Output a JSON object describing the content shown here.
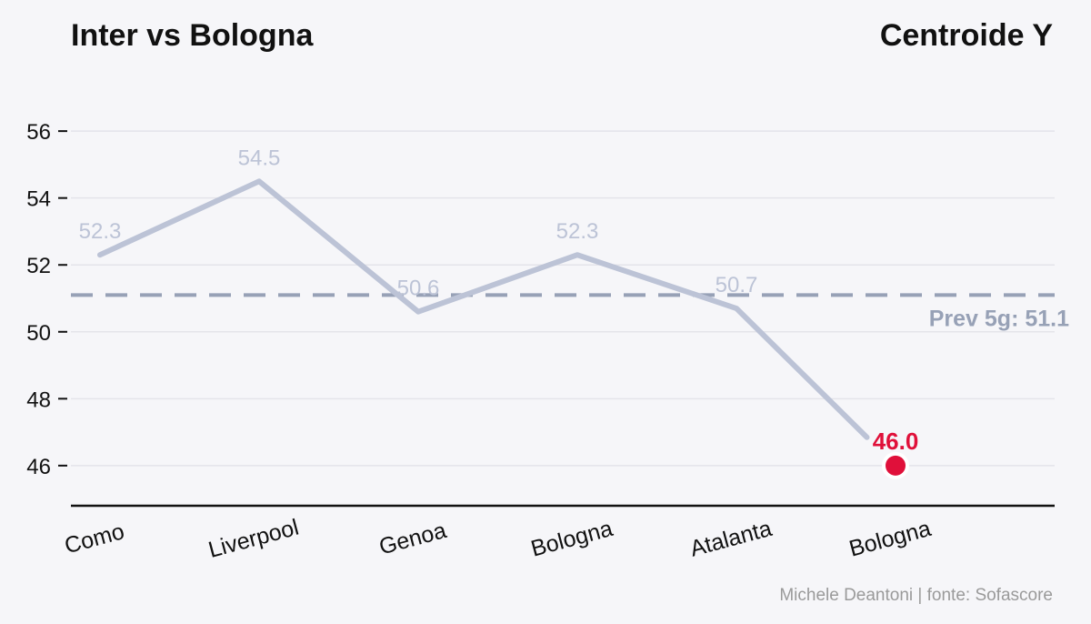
{
  "title_left": "Inter vs Bologna",
  "title_right": "Centroide Y",
  "credit": "Michele Deantoni | fonte: Sofascore",
  "colors": {
    "line": "#bcc3d6",
    "reference": "#97a1b6",
    "highlight": "#e0103a",
    "background": "#f6f6f9"
  },
  "chart_data": {
    "type": "line",
    "title": "Centroide Y",
    "categories": [
      "Como",
      "Liverpool",
      "Genoa",
      "Bologna",
      "Atalanta",
      "Bologna"
    ],
    "values": [
      52.3,
      54.5,
      50.6,
      52.3,
      50.7,
      46.0
    ],
    "value_labels": [
      "52.3",
      "54.5",
      "50.6",
      "52.3",
      "50.7",
      "46.0"
    ],
    "ylim": [
      44.8,
      57.2
    ],
    "yticks": [
      46,
      48,
      50,
      52,
      54,
      56
    ],
    "grid": true,
    "highlight_index": 5,
    "reference": {
      "value": 51.1,
      "label": "Prev 5g: 51.1"
    }
  }
}
